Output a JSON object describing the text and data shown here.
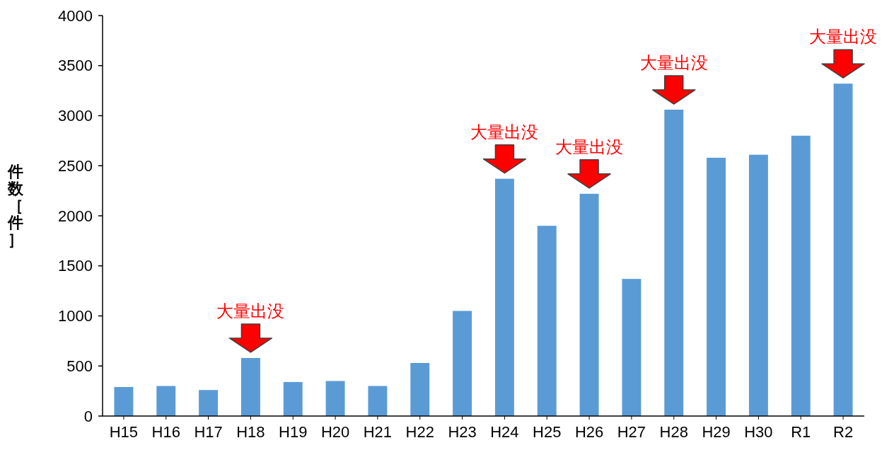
{
  "chart_data": {
    "type": "bar",
    "ylabel": "件数［件］",
    "categories": [
      "H15",
      "H16",
      "H17",
      "H18",
      "H19",
      "H20",
      "H21",
      "H22",
      "H23",
      "H24",
      "H25",
      "H26",
      "H27",
      "H28",
      "H29",
      "H30",
      "R1",
      "R2"
    ],
    "values": [
      290,
      300,
      260,
      580,
      340,
      350,
      300,
      530,
      1050,
      2370,
      1900,
      2220,
      1370,
      3060,
      2580,
      2610,
      2800,
      3320
    ],
    "color": "#5b9bd5",
    "ylim": [
      0,
      4000
    ],
    "yticks": [
      0,
      500,
      1000,
      1500,
      2000,
      2500,
      3000,
      3500,
      4000
    ],
    "grid": false,
    "annotations": [
      {
        "text": "大量出没",
        "x": "H18",
        "y": 580
      },
      {
        "text": "大量出没",
        "x": "H24",
        "y": 2370
      },
      {
        "text": "大量出没",
        "x": "H26",
        "y": 2220
      },
      {
        "text": "大量出没",
        "x": "H28",
        "y": 3060
      },
      {
        "text": "大量出没",
        "x": "R2",
        "y": 3320
      }
    ]
  }
}
